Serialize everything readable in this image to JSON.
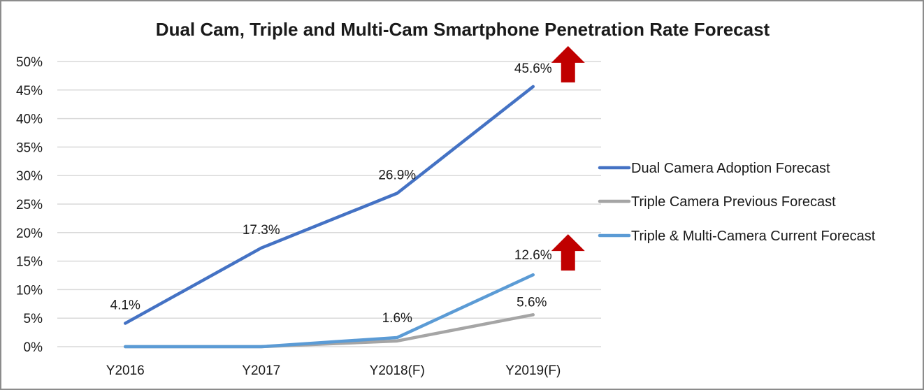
{
  "chart_data": {
    "type": "line",
    "title": "Dual Cam, Triple and Multi-Cam Smartphone Penetration Rate Forecast",
    "xlabel": "",
    "ylabel": "",
    "categories": [
      "Y2016",
      "Y2017",
      "Y2018(F)",
      "Y2019(F)"
    ],
    "ylim": [
      0,
      50
    ],
    "yticks": [
      "0%",
      "5%",
      "10%",
      "15%",
      "20%",
      "25%",
      "30%",
      "35%",
      "40%",
      "45%",
      "50%"
    ],
    "grid": true,
    "legend_position": "right",
    "series": [
      {
        "name": "Dual Camera Adoption Forecast",
        "color": "#4472c4",
        "values": [
          4.1,
          17.3,
          26.9,
          45.6
        ],
        "labels": [
          "4.1%",
          "17.3%",
          "26.9%",
          "45.6%"
        ]
      },
      {
        "name": "Triple Camera Previous Forecast",
        "color": "#a5a5a5",
        "values": [
          0,
          0,
          1.0,
          5.6
        ],
        "labels": [
          "",
          "",
          "",
          "5.6%"
        ]
      },
      {
        "name": "Triple & Multi-Camera Current Forecast",
        "color": "#5b9bd5",
        "values": [
          0,
          0,
          1.6,
          12.6
        ],
        "labels": [
          "",
          "",
          "1.6%",
          "12.6%"
        ]
      }
    ],
    "annotations": [
      {
        "type": "up-arrow-icon",
        "color": "#c00000",
        "series": 0,
        "category": 3
      },
      {
        "type": "up-arrow-icon",
        "color": "#c00000",
        "series": 2,
        "category": 3
      }
    ]
  }
}
